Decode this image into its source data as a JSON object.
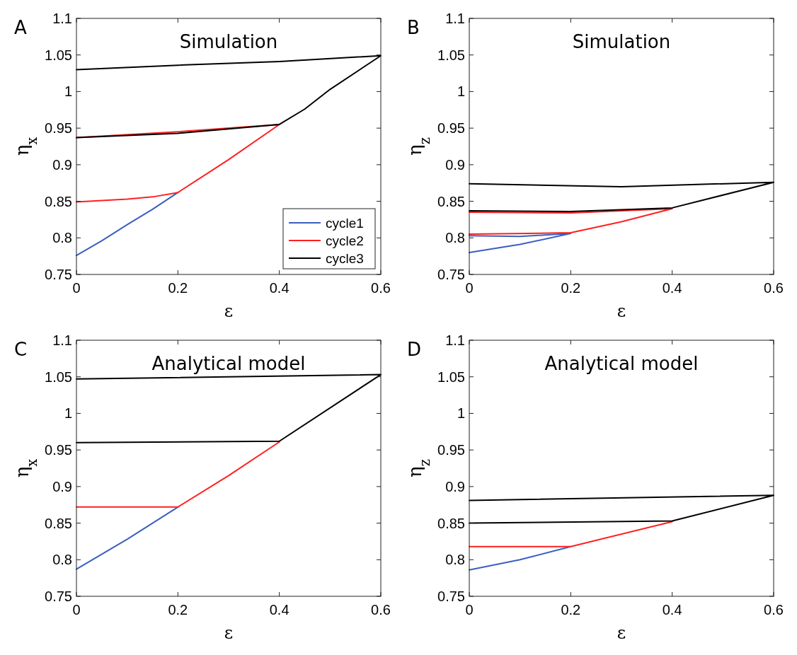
{
  "chart_data": [
    {
      "type": "line",
      "title": "Simulation",
      "xlabel": "ε",
      "ylabel": "η$_{x}$",
      "annotations": [
        "A"
      ],
      "xlim": [
        0,
        0.6
      ],
      "xticks": [
        0,
        0.2,
        0.4,
        0.6
      ],
      "ylim": [
        0.75,
        1.1
      ],
      "yticks": [
        0.75,
        0.8,
        0.85,
        0.9,
        0.95,
        1,
        1.05,
        1.1
      ],
      "legend": "bottom right",
      "marker": "none",
      "line_style": "solid",
      "grid": false,
      "series": [
        {
          "name": "cycle1",
          "color": "#3a5fc0",
          "x": [
            0,
            0.05,
            0.1,
            0.15,
            0.2
          ],
          "values": [
            0.776,
            0.796,
            0.818,
            0.839,
            0.862
          ]
        },
        {
          "name": "cycle2",
          "color": "#ff2020",
          "x": [
            0,
            0.1,
            0.15,
            0.2,
            0.3,
            0.4,
            0.2,
            0
          ],
          "values": [
            0.849,
            0.853,
            0.856,
            0.862,
            0.907,
            0.955,
            0.945,
            0.937
          ]
        },
        {
          "name": "cycle3",
          "color": "#000000",
          "x": [
            0,
            0.2,
            0.4,
            0.45,
            0.5,
            0.6,
            0.4,
            0.2,
            0
          ],
          "values": [
            0.937,
            0.943,
            0.955,
            0.976,
            1.003,
            1.049,
            1.041,
            1.036,
            1.03
          ]
        }
      ]
    },
    {
      "type": "line",
      "title": "Simulation",
      "xlabel": "ε",
      "ylabel": "η$_{z}$",
      "annotations": [
        "B"
      ],
      "xlim": [
        0,
        0.6
      ],
      "xticks": [
        0,
        0.2,
        0.4,
        0.6
      ],
      "ylim": [
        0.75,
        1.1
      ],
      "yticks": [
        0.75,
        0.8,
        0.85,
        0.9,
        0.95,
        1,
        1.05,
        1.1
      ],
      "marker": "none",
      "line_style": "solid",
      "grid": false,
      "series": [
        {
          "color": "#3a5fc0",
          "x": [
            0,
            0.1,
            0.2,
            0.1,
            0
          ],
          "values": [
            0.78,
            0.791,
            0.806,
            0.802,
            0.803
          ]
        },
        {
          "color": "#ff2020",
          "x": [
            0,
            0.2,
            0.3,
            0.4,
            0.2,
            0
          ],
          "values": [
            0.805,
            0.807,
            0.822,
            0.84,
            0.834,
            0.835
          ]
        },
        {
          "color": "#000000",
          "x": [
            0,
            0.2,
            0.4,
            0.6,
            0.3,
            0
          ],
          "values": [
            0.837,
            0.836,
            0.841,
            0.876,
            0.87,
            0.874
          ]
        }
      ]
    },
    {
      "type": "line",
      "title": "Analytical model",
      "xlabel": "ε",
      "ylabel": "η$_{x}$",
      "annotations": [
        "C"
      ],
      "xlim": [
        0,
        0.6
      ],
      "xticks": [
        0,
        0.2,
        0.4,
        0.6
      ],
      "ylim": [
        0.75,
        1.1
      ],
      "yticks": [
        0.75,
        0.8,
        0.85,
        0.9,
        0.95,
        1,
        1.05,
        1.1
      ],
      "marker": "none",
      "line_style": "solid",
      "grid": false,
      "series": [
        {
          "color": "#3a5fc0",
          "x": [
            0,
            0.1,
            0.2
          ],
          "values": [
            0.787,
            0.828,
            0.872
          ]
        },
        {
          "color": "#ff2020",
          "x": [
            0,
            0.2,
            0.3,
            0.4
          ],
          "values": [
            0.872,
            0.872,
            0.915,
            0.961
          ]
        },
        {
          "color": "#000000",
          "x": [
            0,
            0.4,
            0.6,
            0
          ],
          "values": [
            0.96,
            0.962,
            1.053,
            1.047
          ]
        }
      ]
    },
    {
      "type": "line",
      "title": "Analytical model",
      "xlabel": "ε",
      "ylabel": "η$_{z}$",
      "annotations": [
        "D"
      ],
      "xlim": [
        0,
        0.6
      ],
      "xticks": [
        0,
        0.2,
        0.4,
        0.6
      ],
      "ylim": [
        0.75,
        1.1
      ],
      "yticks": [
        0.75,
        0.8,
        0.85,
        0.9,
        0.95,
        1,
        1.05,
        1.1
      ],
      "marker": "none",
      "line_style": "solid",
      "grid": false,
      "series": [
        {
          "color": "#3a5fc0",
          "x": [
            0,
            0.1,
            0.2
          ],
          "values": [
            0.786,
            0.8,
            0.818
          ]
        },
        {
          "color": "#ff2020",
          "x": [
            0,
            0.2,
            0.4
          ],
          "values": [
            0.818,
            0.818,
            0.852
          ]
        },
        {
          "color": "#000000",
          "x": [
            0,
            0.4,
            0.6,
            0
          ],
          "values": [
            0.85,
            0.853,
            0.888,
            0.881
          ]
        }
      ]
    }
  ]
}
